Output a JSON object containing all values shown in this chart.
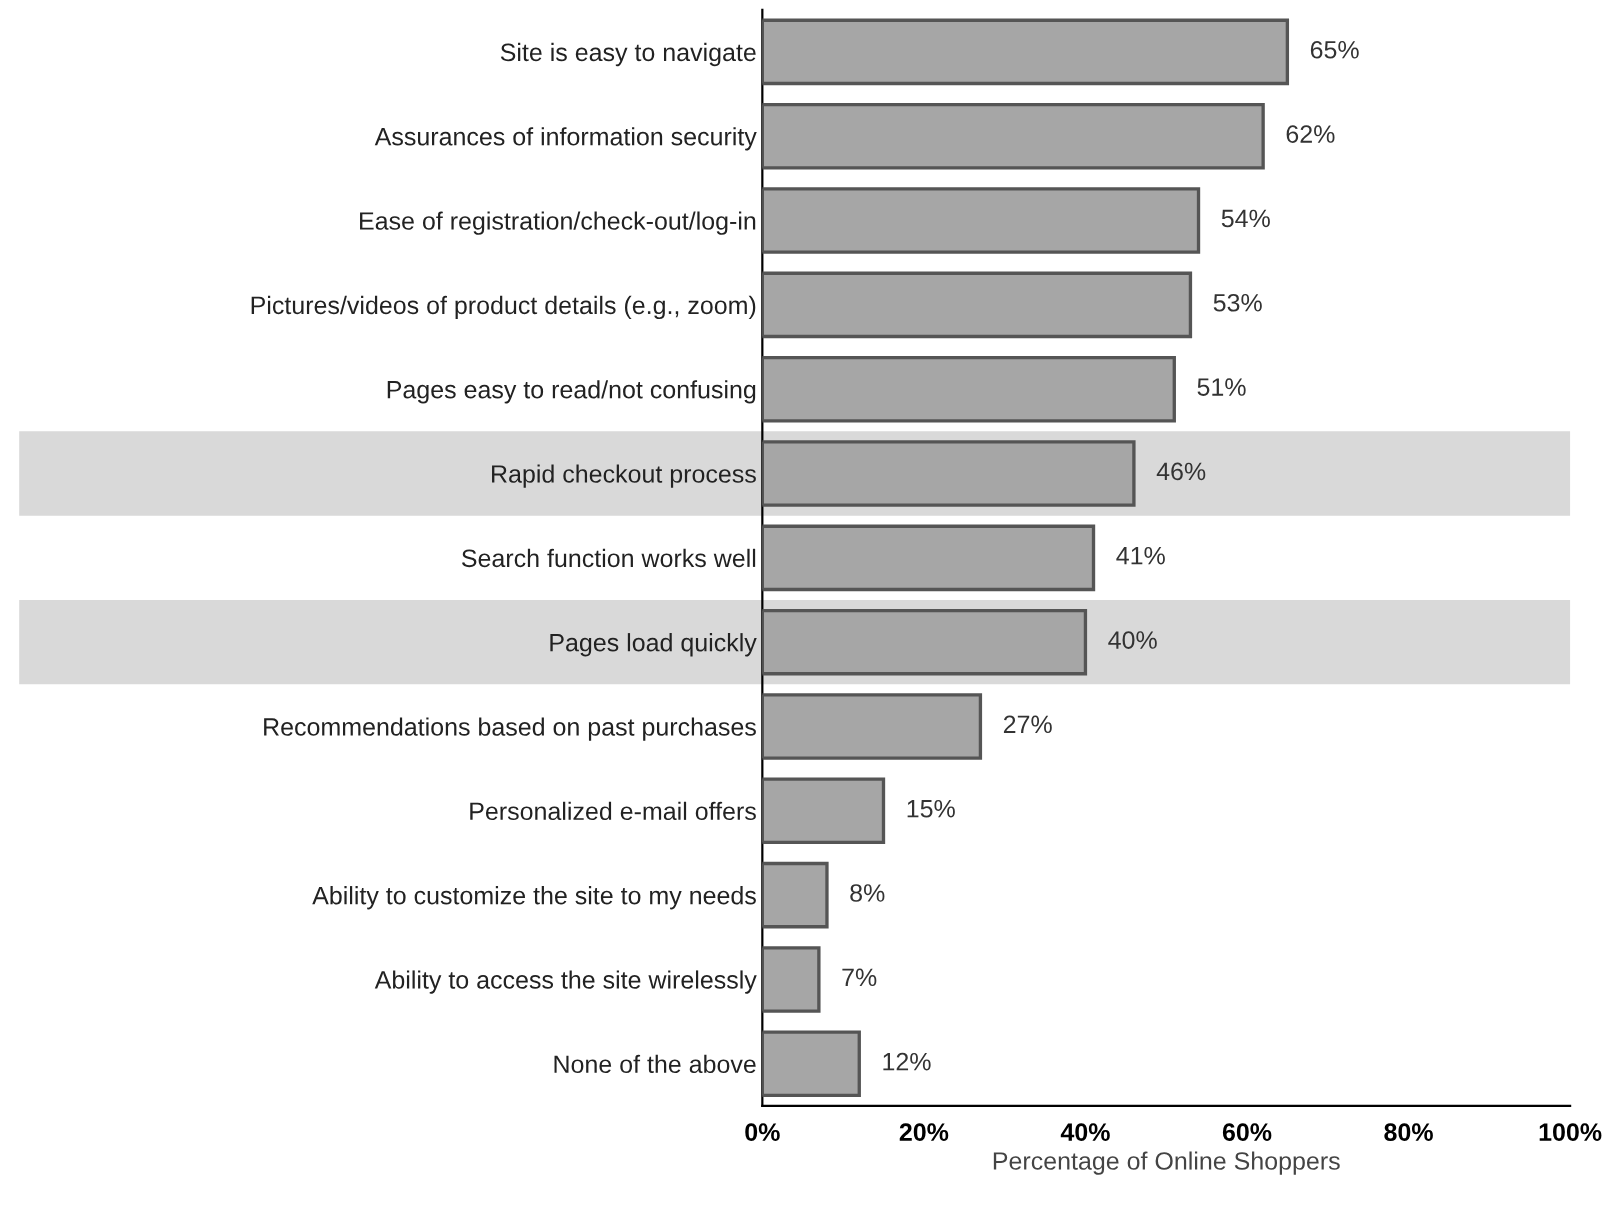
{
  "chart_data": {
    "type": "bar",
    "orientation": "horizontal",
    "xlabel": "Percentage of Online Shoppers",
    "categories": [
      "Site is easy to navigate",
      "Assurances of information security",
      "Ease of registration/check-out/log-in",
      "Pictures/videos of product details (e.g., zoom)",
      "Pages easy to read/not confusing",
      "Rapid checkout process",
      "Search function works well",
      "Pages load quickly",
      "Recommendations based on past purchases",
      "Personalized e-mail offers",
      "Ability to customize the site to my needs",
      "Ability to access the site wirelessly",
      "None of the above"
    ],
    "values": [
      65,
      62,
      54,
      53,
      51,
      46,
      41,
      40,
      27,
      15,
      8,
      7,
      12
    ],
    "value_labels": [
      "65%",
      "62%",
      "54%",
      "53%",
      "51%",
      "46%",
      "41%",
      "40%",
      "27%",
      "15%",
      "8%",
      "7%",
      "12%"
    ],
    "color": "#a6a6a6",
    "xlim": [
      0,
      100
    ],
    "xticks": [
      {
        "value": 0,
        "label": "0%"
      },
      {
        "value": 20,
        "label": "20%"
      },
      {
        "value": 40,
        "label": "40%"
      },
      {
        "value": 60,
        "label": "60%"
      },
      {
        "value": 80,
        "label": "80%"
      },
      {
        "value": 100,
        "label": "100%"
      }
    ],
    "bands": [
      {
        "axis": "y",
        "from": "Rapid checkout process",
        "to": "Rapid checkout process",
        "color": "#d9d9d9"
      },
      {
        "axis": "y",
        "from": "Pages load quickly",
        "to": "Pages load quickly",
        "color": "#d9d9d9"
      }
    ],
    "grid": false,
    "legend": false
  }
}
